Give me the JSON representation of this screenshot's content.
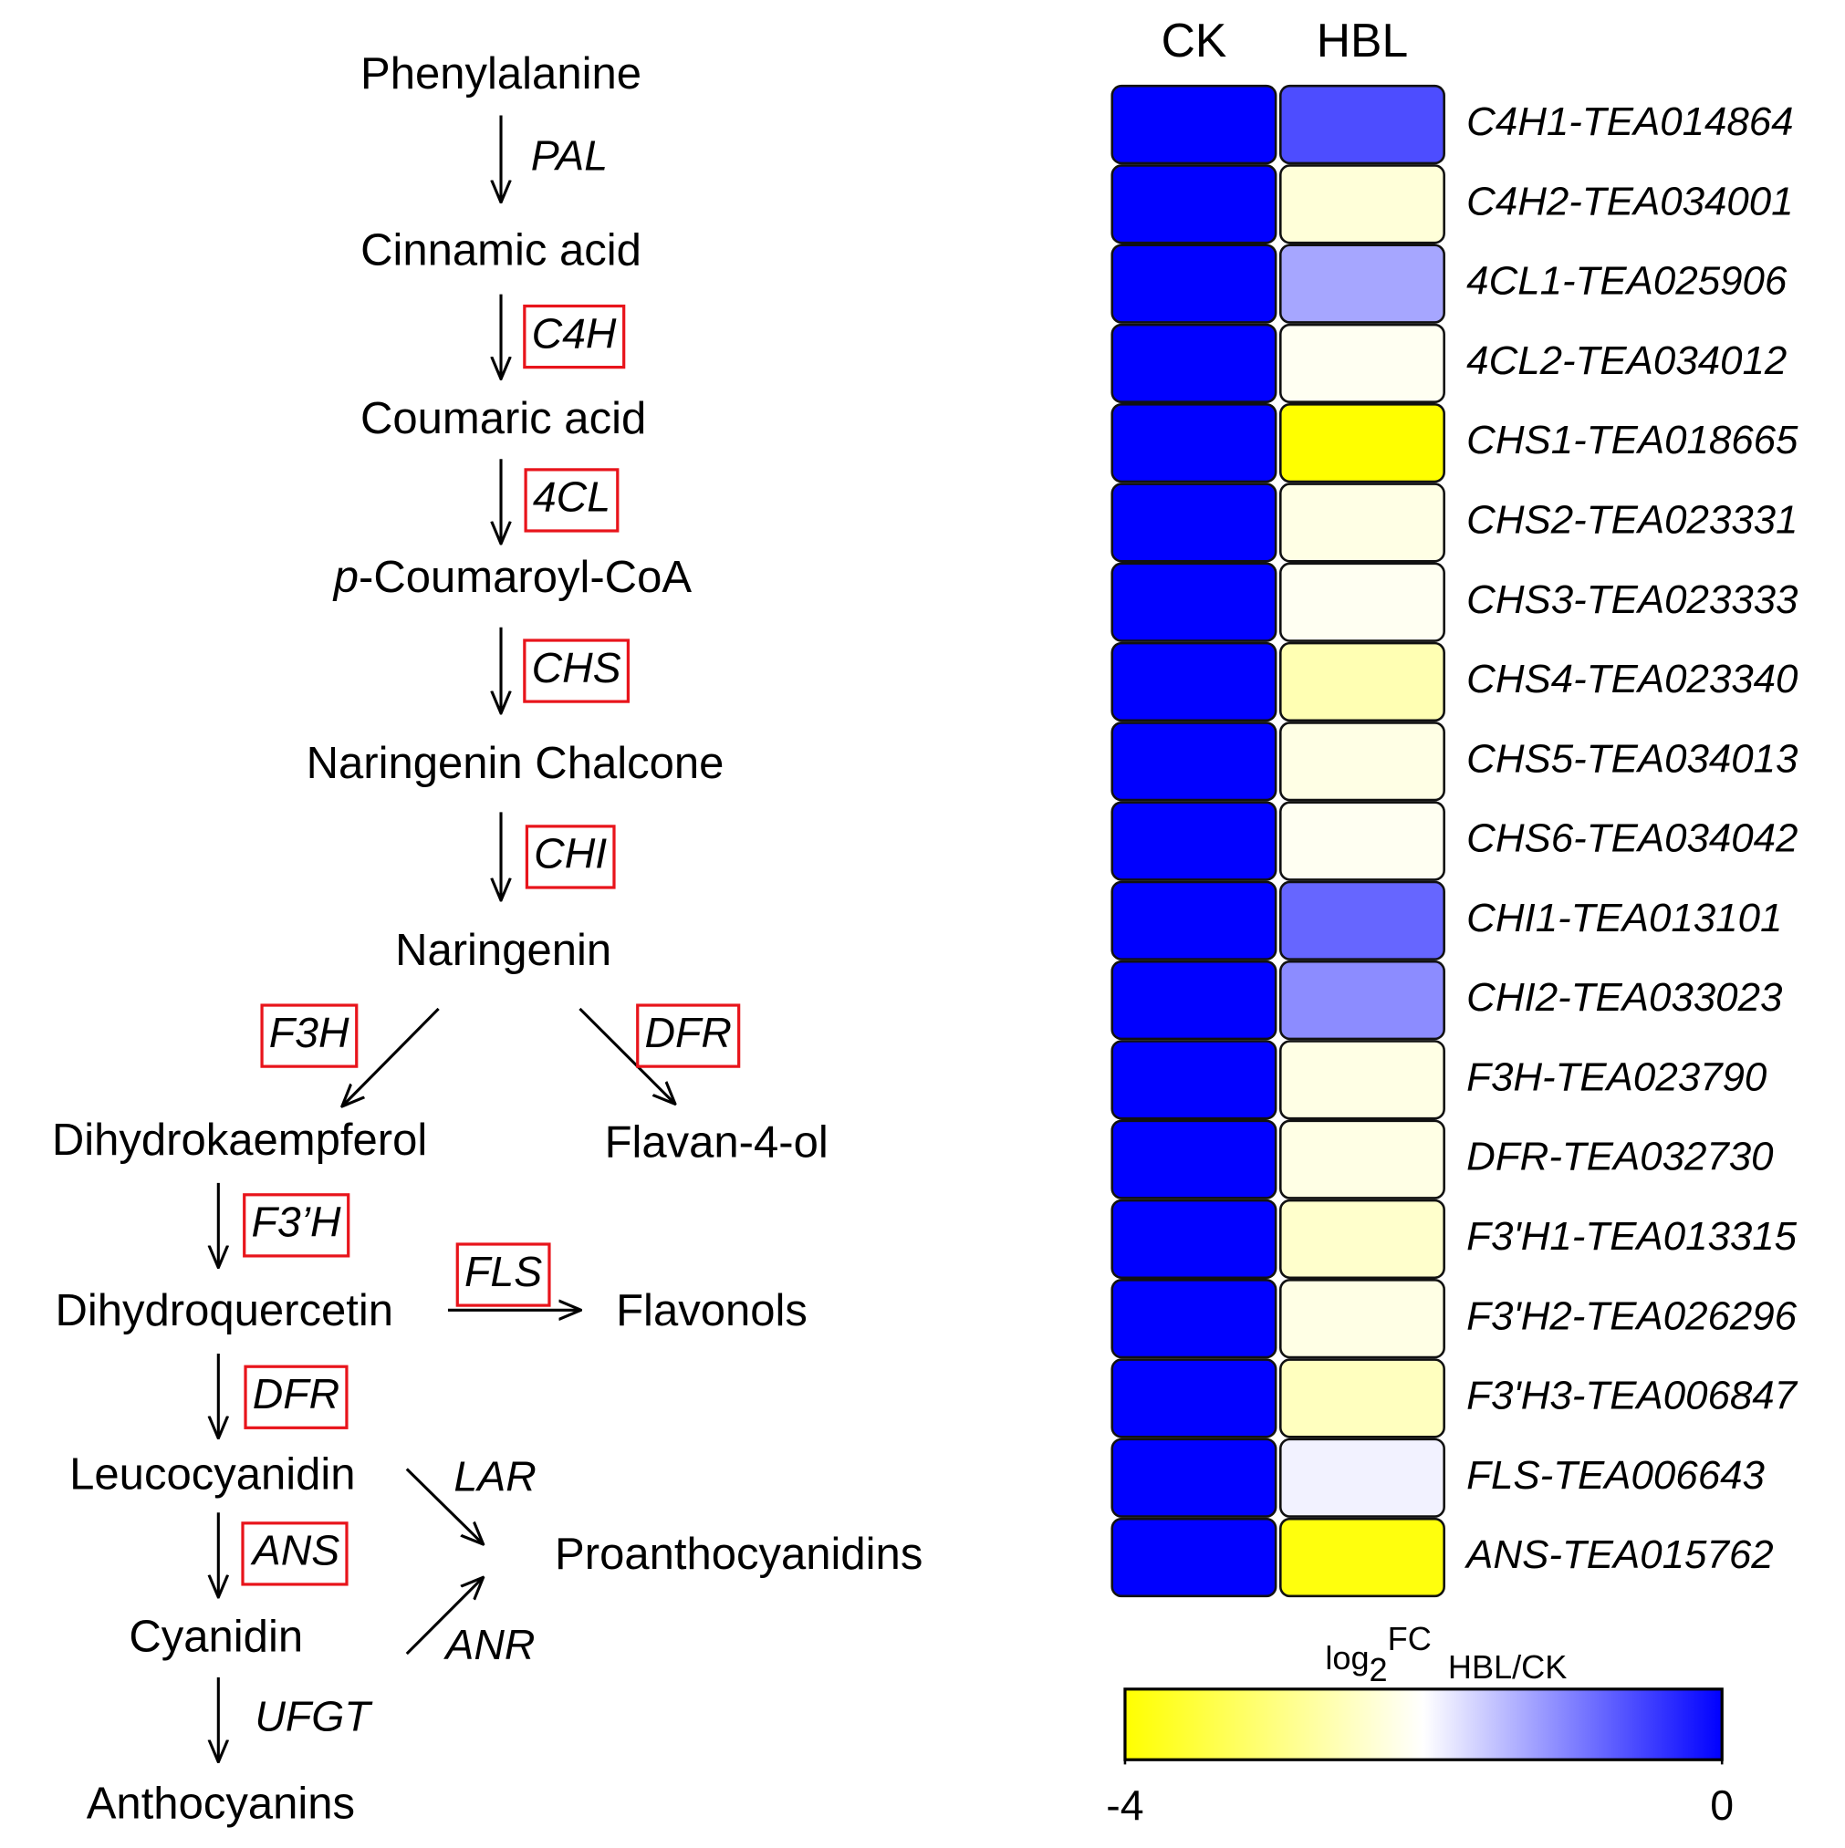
{
  "pathway": {
    "nodes": [
      {
        "label": "Phenylalanine"
      },
      {
        "label": "Cinnamic acid"
      },
      {
        "label": "Coumaric acid"
      },
      {
        "italic_prefix": "p",
        "label": "-Coumaroyl-CoA"
      },
      {
        "label": "Naringenin Chalcone"
      },
      {
        "label": "Naringenin"
      },
      {
        "label": "Dihydrokaempferol"
      },
      {
        "label": "Flavan-4-ol"
      },
      {
        "label": "Dihydroquercetin"
      },
      {
        "label": "Flavonols"
      },
      {
        "label": "Leucocyanidin"
      },
      {
        "label": "Proanthocyanidins"
      },
      {
        "label": "Cyanidin"
      },
      {
        "label": "Anthocyanins"
      }
    ],
    "enzymes": [
      {
        "label": "PAL",
        "highlighted": false
      },
      {
        "label": "C4H",
        "highlighted": true
      },
      {
        "label": "4CL",
        "highlighted": true
      },
      {
        "label": "CHS",
        "highlighted": true
      },
      {
        "label": "CHI",
        "highlighted": true
      },
      {
        "label": "F3H",
        "highlighted": true
      },
      {
        "label": "DFR",
        "highlighted": true
      },
      {
        "label": "F3’H",
        "highlighted": true
      },
      {
        "label": "FLS",
        "highlighted": true
      },
      {
        "label": "DFR",
        "highlighted": true
      },
      {
        "label": "LAR",
        "highlighted": false
      },
      {
        "label": "ANS",
        "highlighted": true
      },
      {
        "label": "ANR",
        "highlighted": false
      },
      {
        "label": "UFGT",
        "highlighted": false
      }
    ]
  },
  "chart_data": {
    "type": "heatmap",
    "columns": [
      "CK",
      "HBL"
    ],
    "rows": [
      "C4H1-TEA014864",
      "C4H2-TEA034001",
      "4CL1-TEA025906",
      "4CL2-TEA034012",
      "CHS1-TEA018665",
      "CHS2-TEA023331",
      "CHS3-TEA023333",
      "CHS4-TEA023340",
      "CHS5-TEA034013",
      "CHS6-TEA034042",
      "CHI1-TEA013101",
      "CHI2-TEA033023",
      "F3H-TEA023790",
      "DFR-TEA032730",
      "F3'H1-TEA013315",
      "F3'H2-TEA026296",
      "F3'H3-TEA006847",
      "FLS-TEA006643",
      "ANS-TEA015762"
    ],
    "series": [
      {
        "name": "CK",
        "values": [
          0,
          0,
          0,
          0,
          0,
          0,
          0,
          0,
          0,
          0,
          0,
          0,
          0,
          0,
          0,
          0,
          0,
          0,
          0
        ]
      },
      {
        "name": "HBL",
        "values": [
          -0.6,
          -2.3,
          -1.3,
          -2.1,
          -4,
          -2.2,
          -2.1,
          -2.6,
          -2.2,
          -2.1,
          -0.8,
          -1.1,
          -2.2,
          -2.2,
          -2.4,
          -2.2,
          -2.5,
          -1.9,
          -3.9
        ]
      }
    ],
    "colors": [
      "#ffff00",
      "#ffffff",
      "#0000ff"
    ],
    "clim": [
      -4,
      0
    ],
    "cticks": [
      -4,
      0
    ],
    "colorbar_label": {
      "base": "log",
      "sub": "2",
      "sup": "FC",
      "suffix": "HBL/CK"
    }
  }
}
